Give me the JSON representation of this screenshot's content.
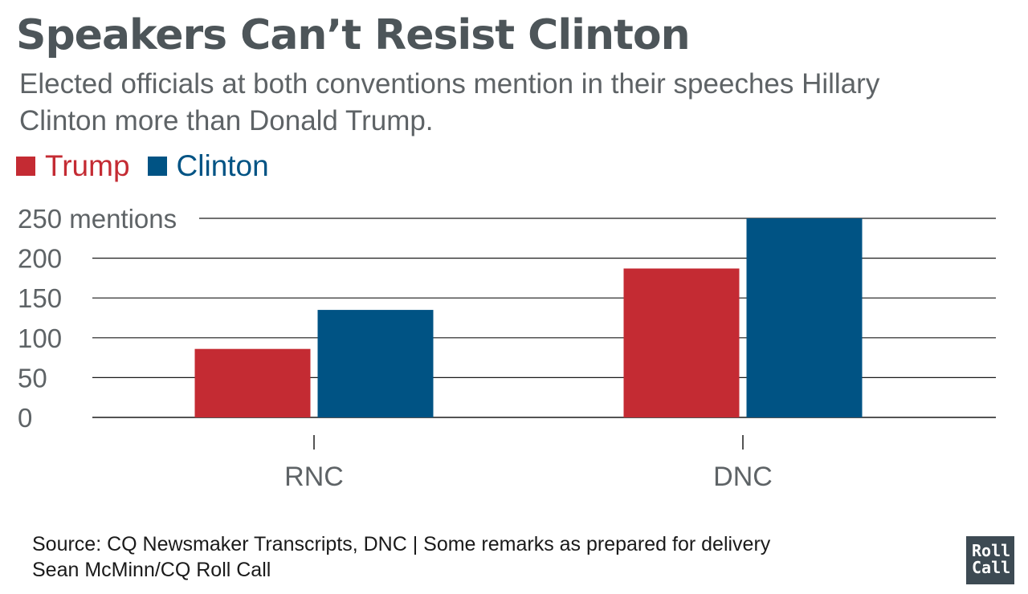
{
  "header": {
    "title": "Speakers Can’t Resist Clinton",
    "subtitle": "Elected officials at both conventions mention in their speeches Hillary Clinton more than Donald Trump."
  },
  "colors": {
    "trump": "#c42b33",
    "clinton": "#005384",
    "grid": "#1a1a1a",
    "axis_text": "#5e6366"
  },
  "footer": {
    "source": "Source: CQ Newsmaker Transcripts, DNC | Some remarks as prepared for delivery",
    "credit": "Sean McMinn/CQ Roll Call",
    "logo_line1": "Roll",
    "logo_line2": "Call"
  },
  "chart_data": {
    "type": "bar",
    "categories": [
      "RNC",
      "DNC"
    ],
    "series": [
      {
        "name": "Trump",
        "values": [
          86,
          187
        ]
      },
      {
        "name": "Clinton",
        "values": [
          135,
          250
        ]
      }
    ],
    "yticks": [
      0,
      50,
      100,
      150,
      200,
      250
    ],
    "ytick_labels": [
      "0",
      "50",
      "100",
      "150",
      "200",
      "250 mentions"
    ],
    "ylim": [
      0,
      250
    ],
    "grid": true,
    "legend_position": "top-left"
  }
}
